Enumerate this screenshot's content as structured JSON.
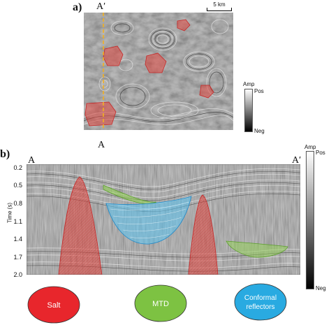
{
  "panel_a": {
    "label": "a)",
    "profile_top": "A′",
    "profile_bottom": "A",
    "scale_bar": "5 km",
    "colorbar": {
      "title": "Amp",
      "top": "Pos",
      "bottom": "Neg"
    }
  },
  "panel_b": {
    "label": "b)",
    "left_end": "A",
    "right_end": "A′",
    "yaxis_label": "Time (s)",
    "yticks": [
      "0.2",
      "0.5",
      "0.8",
      "1.1",
      "1.4",
      "1.7",
      "2.0"
    ],
    "colorbar": {
      "title": "Amp",
      "top": "Pos",
      "bottom": "Neg"
    }
  },
  "legend": [
    {
      "label": "Salt",
      "color": "#e8262c"
    },
    {
      "label": "MTD",
      "color": "#7dc242"
    },
    {
      "label": "Conformal reflectors",
      "line1": "Conformal",
      "line2": "reflectors",
      "color": "#29aae1"
    }
  ],
  "colors": {
    "salt_overlay": "#e0473f",
    "mtd_overlay": "#8fd14f",
    "conformal_overlay": "#5bc5f2",
    "profile_line": "#f2b020"
  }
}
